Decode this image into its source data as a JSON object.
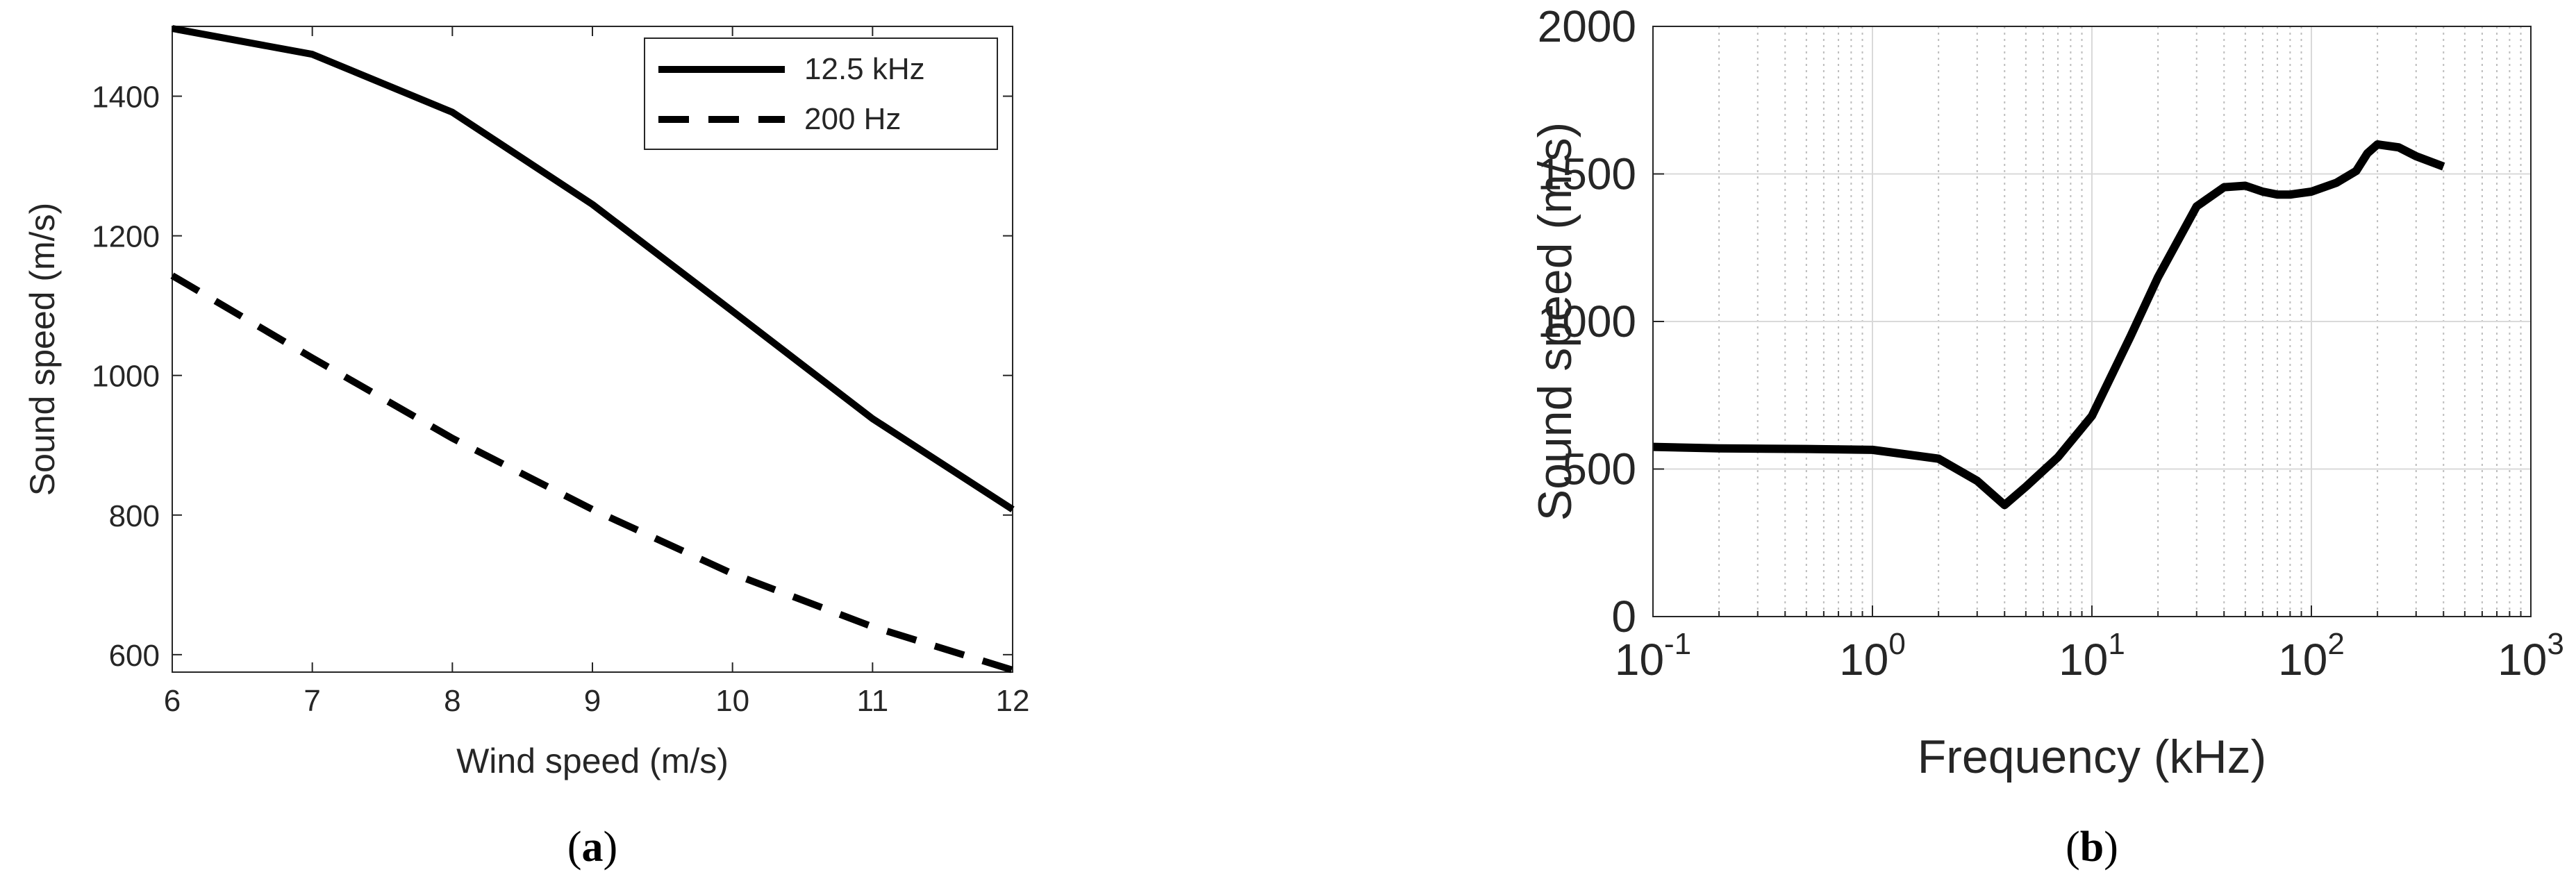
{
  "chart_data": [
    {
      "type": "line",
      "panel_label": "a",
      "xlabel": "Wind speed (m/s)",
      "ylabel": "Sound speed (m/s)",
      "xlim": [
        6,
        12
      ],
      "ylim": [
        575,
        1500
      ],
      "x_ticks": [
        6,
        7,
        8,
        9,
        10,
        11,
        12
      ],
      "y_ticks": [
        600,
        800,
        1000,
        1200,
        1400
      ],
      "grid": false,
      "legend": "top-right",
      "series": [
        {
          "name": "12.5 kHz",
          "style": "solid",
          "x": [
            6,
            7,
            8,
            9,
            10,
            11,
            12
          ],
          "y": [
            1497,
            1460,
            1377,
            1245,
            1092,
            938,
            808
          ]
        },
        {
          "name": "200 Hz",
          "style": "dashed",
          "x": [
            6,
            7,
            8,
            9,
            10,
            11,
            12
          ],
          "y": [
            1143,
            1025,
            910,
            808,
            716,
            640,
            578
          ]
        }
      ]
    },
    {
      "type": "line",
      "panel_label": "b",
      "xlabel": "Frequency (kHz)",
      "ylabel": "Sound speed (m/s)",
      "xscale": "log",
      "xlim": [
        0.1,
        1000
      ],
      "ylim": [
        0,
        2000
      ],
      "x_ticks": [
        0.1,
        1,
        10,
        100,
        1000
      ],
      "x_tick_labels": [
        {
          "base": "10",
          "exp": "-1"
        },
        {
          "base": "10",
          "exp": "0"
        },
        {
          "base": "10",
          "exp": "1"
        },
        {
          "base": "10",
          "exp": "2"
        },
        {
          "base": "10",
          "exp": "3"
        }
      ],
      "y_ticks": [
        0,
        500,
        1000,
        1500,
        2000
      ],
      "grid": true,
      "series": [
        {
          "style": "solid",
          "x": [
            0.1,
            0.2,
            0.5,
            1,
            2,
            3,
            4,
            5,
            7,
            10,
            15,
            20,
            30,
            40,
            50,
            60,
            70,
            80,
            100,
            130,
            160,
            180,
            200,
            250,
            300,
            400
          ],
          "y": [
            575,
            570,
            568,
            565,
            535,
            460,
            378,
            440,
            540,
            680,
            950,
            1150,
            1390,
            1455,
            1460,
            1440,
            1430,
            1430,
            1440,
            1470,
            1510,
            1570,
            1600,
            1590,
            1560,
            1525
          ]
        }
      ]
    }
  ]
}
